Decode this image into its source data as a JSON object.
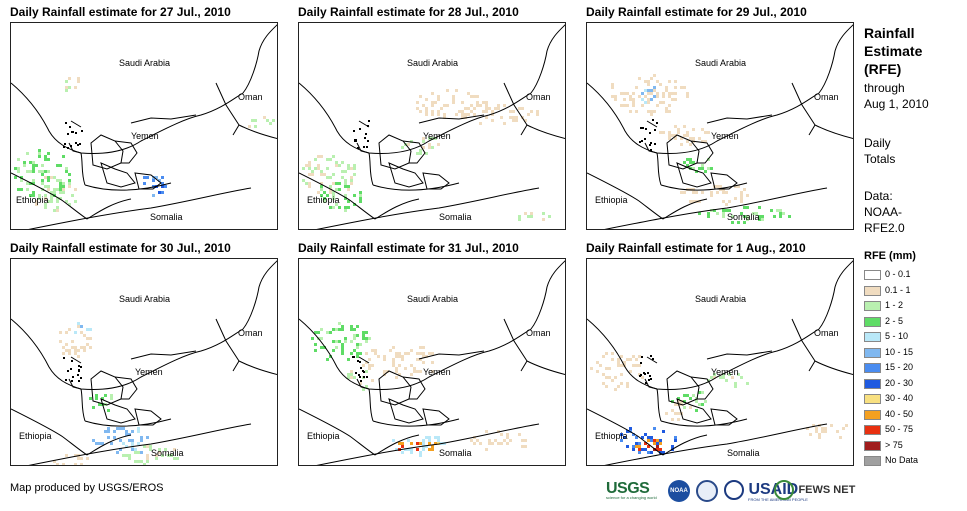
{
  "panels": [
    {
      "title": "Daily Rainfall estimate for 27 Jul., 2010",
      "date": "27 Jul., 2010"
    },
    {
      "title": "Daily Rainfall estimate for 28 Jul., 2010",
      "date": "28 Jul., 2010"
    },
    {
      "title": "Daily Rainfall estimate for 29 Jul., 2010",
      "date": "29 Jul., 2010"
    },
    {
      "title": "Daily Rainfall estimate for 30 Jul., 2010",
      "date": "30 Jul., 2010"
    },
    {
      "title": "Daily Rainfall estimate for 31 Jul., 2010",
      "date": "31 Jul., 2010"
    },
    {
      "title": "Daily Rainfall estimate for 1 Aug., 2010",
      "date": "1 Aug., 2010"
    }
  ],
  "map_labels": {
    "saudi": "Saudi Arabia",
    "oman": "Oman",
    "yemen": "Yemen",
    "ethiopia": "Ethiopia",
    "somalia": "Somalia"
  },
  "legend": {
    "heading_line1": "Rainfall",
    "heading_line2": "Estimate",
    "heading_line3": "(RFE)",
    "through": "through",
    "through_date": "Aug 1, 2010",
    "daily1": "Daily",
    "daily2": "Totals",
    "data1": "Data:",
    "data2": "NOAA-",
    "data3": "RFE2.0",
    "rfe_title": "RFE (mm)",
    "classes": [
      {
        "label": "0 - 0.1",
        "color": "#ffffff"
      },
      {
        "label": "0.1 - 1",
        "color": "#f0dcc0"
      },
      {
        "label": "1 - 2",
        "color": "#b9f0b0"
      },
      {
        "label": "2 - 5",
        "color": "#5fdc66"
      },
      {
        "label": "5 - 10",
        "color": "#b9e8f8"
      },
      {
        "label": "10 - 15",
        "color": "#80b8f0"
      },
      {
        "label": "15 - 20",
        "color": "#4a8cf0"
      },
      {
        "label": "20 - 30",
        "color": "#1f5ae0"
      },
      {
        "label": "30 - 40",
        "color": "#f8e080"
      },
      {
        "label": "40 - 50",
        "color": "#f4a020"
      },
      {
        "label": "50 - 75",
        "color": "#e83010"
      },
      {
        "label": "> 75",
        "color": "#a01c1c"
      },
      {
        "label": "No Data",
        "color": "#a0a0a0"
      }
    ]
  },
  "credit": "Map produced by USGS/EROS",
  "logos": {
    "usgs": "USGS",
    "usgs_tag": "science for a changing world",
    "noaa": "NOAA",
    "usaid": "USAID",
    "usaid_tag": "FROM THE AMERICAN PEOPLE",
    "fews": "FEWS NET"
  }
}
